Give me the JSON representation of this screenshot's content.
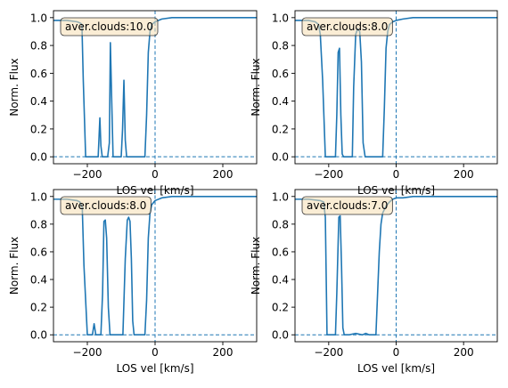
{
  "chart_data": [
    {
      "type": "line",
      "annotation": "aver.clouds:10.0",
      "xlabel": "LOS vel [km/s]",
      "ylabel": "Norm. Flux",
      "xlim": [
        -300,
        300
      ],
      "ylim": [
        -0.05,
        1.05
      ],
      "xticks": [
        -200,
        0,
        200
      ],
      "yticks": [
        0.0,
        0.2,
        0.4,
        0.6,
        0.8,
        1.0
      ],
      "xtick_labels": [
        "−200",
        "0",
        "200"
      ],
      "ytick_labels": [
        "0.0",
        "0.2",
        "0.4",
        "0.6",
        "0.8",
        "1.0"
      ],
      "reference_lines": {
        "x": 0,
        "y": 0
      },
      "series": [
        {
          "x": [
            -300,
            -260,
            -230,
            -220,
            -216,
            -212,
            -205,
            -195,
            -180,
            -172,
            -168,
            -163,
            -160,
            -156,
            -150,
            -145,
            -140,
            -135,
            -132,
            -128,
            -124,
            -120,
            -115,
            -110,
            -105,
            -100,
            -96,
            -92,
            -88,
            -84,
            -80,
            -70,
            -60,
            -50,
            -40,
            -30,
            -25,
            -20,
            -15,
            -10,
            0,
            20,
            50,
            100,
            200,
            300
          ],
          "y": [
            0.98,
            0.98,
            0.97,
            0.96,
            0.95,
            0.55,
            0.0,
            0.0,
            0.0,
            0.0,
            0.0,
            0.28,
            0.08,
            0.0,
            0.0,
            0.0,
            0.0,
            0.1,
            0.82,
            0.4,
            0.0,
            0.0,
            0.0,
            0.0,
            0.0,
            0.0,
            0.2,
            0.55,
            0.12,
            0.0,
            0.0,
            0.0,
            0.0,
            0.0,
            0.0,
            0.0,
            0.3,
            0.75,
            0.9,
            0.95,
            0.97,
            0.99,
            1.0,
            1.0,
            1.0,
            1.0
          ]
        }
      ]
    },
    {
      "type": "line",
      "annotation": "aver.clouds:8.0",
      "xlabel": "LOS vel [km/s]",
      "ylabel": "Norm. Flux",
      "xlim": [
        -300,
        300
      ],
      "ylim": [
        -0.05,
        1.05
      ],
      "xticks": [
        -200,
        0,
        200
      ],
      "yticks": [
        0.0,
        0.2,
        0.4,
        0.6,
        0.8,
        1.0
      ],
      "xtick_labels": [
        "−200",
        "0",
        "200"
      ],
      "ytick_labels": [
        "0.0",
        "0.2",
        "0.4",
        "0.6",
        "0.8",
        "1.0"
      ],
      "reference_lines": {
        "x": 0,
        "y": 0
      },
      "series": [
        {
          "x": [
            -300,
            -260,
            -240,
            -230,
            -225,
            -218,
            -210,
            -200,
            -190,
            -180,
            -176,
            -172,
            -168,
            -164,
            -160,
            -156,
            -150,
            -140,
            -130,
            -126,
            -120,
            -114,
            -108,
            -103,
            -98,
            -92,
            -80,
            -60,
            -40,
            -35,
            -30,
            -25,
            -20,
            -10,
            0,
            20,
            50,
            100,
            200,
            300
          ],
          "y": [
            0.98,
            0.98,
            0.97,
            0.95,
            0.88,
            0.55,
            0.0,
            0.0,
            0.0,
            0.0,
            0.3,
            0.75,
            0.78,
            0.3,
            0.02,
            0.0,
            0.0,
            0.0,
            0.0,
            0.5,
            0.88,
            0.92,
            0.9,
            0.68,
            0.1,
            0.0,
            0.0,
            0.0,
            0.0,
            0.35,
            0.78,
            0.9,
            0.95,
            0.97,
            0.98,
            0.99,
            1.0,
            1.0,
            1.0,
            1.0
          ]
        }
      ]
    },
    {
      "type": "line",
      "annotation": "aver.clouds:8.0",
      "xlabel": "LOS vel [km/s]",
      "ylabel": "Norm. Flux",
      "xlim": [
        -300,
        300
      ],
      "ylim": [
        -0.05,
        1.05
      ],
      "xticks": [
        -200,
        0,
        200
      ],
      "yticks": [
        0.0,
        0.2,
        0.4,
        0.6,
        0.8,
        1.0
      ],
      "xtick_labels": [
        "−200",
        "0",
        "200"
      ],
      "ytick_labels": [
        "0.0",
        "0.2",
        "0.4",
        "0.6",
        "0.8",
        "1.0"
      ],
      "reference_lines": {
        "x": 0,
        "y": 0
      },
      "series": [
        {
          "x": [
            -300,
            -260,
            -230,
            -222,
            -215,
            -210,
            -200,
            -190,
            -185,
            -180,
            -175,
            -170,
            -165,
            -160,
            -155,
            -151,
            -147,
            -143,
            -138,
            -133,
            -125,
            -115,
            -105,
            -95,
            -88,
            -82,
            -78,
            -74,
            -70,
            -66,
            -62,
            -58,
            -50,
            -40,
            -30,
            -25,
            -20,
            -15,
            -10,
            0,
            20,
            50,
            100,
            200,
            300
          ],
          "y": [
            0.98,
            0.98,
            0.97,
            0.96,
            0.92,
            0.5,
            0.0,
            0.0,
            0.0,
            0.08,
            0.0,
            0.0,
            0.0,
            0.0,
            0.3,
            0.82,
            0.83,
            0.7,
            0.2,
            0.0,
            0.0,
            0.0,
            0.0,
            0.0,
            0.55,
            0.83,
            0.85,
            0.82,
            0.55,
            0.1,
            0.0,
            0.0,
            0.0,
            0.0,
            0.0,
            0.25,
            0.7,
            0.88,
            0.94,
            0.97,
            0.99,
            1.0,
            1.0,
            1.0,
            1.0
          ]
        }
      ]
    },
    {
      "type": "line",
      "annotation": "aver.clouds:7.0",
      "xlabel": "LOS vel [km/s]",
      "ylabel": "Norm. Flux",
      "xlim": [
        -300,
        300
      ],
      "ylim": [
        -0.05,
        1.05
      ],
      "xticks": [
        -200,
        0,
        200
      ],
      "yticks": [
        0.0,
        0.2,
        0.4,
        0.6,
        0.8,
        1.0
      ],
      "xtick_labels": [
        "−200",
        "0",
        "200"
      ],
      "ytick_labels": [
        "0.0",
        "0.2",
        "0.4",
        "0.6",
        "0.8",
        "1.0"
      ],
      "reference_lines": {
        "x": 0,
        "y": 0
      },
      "series": [
        {
          "x": [
            -300,
            -260,
            -225,
            -215,
            -210,
            -205,
            -195,
            -185,
            -180,
            -176,
            -170,
            -166,
            -162,
            -158,
            -154,
            -150,
            -140,
            -120,
            -100,
            -90,
            -80,
            -70,
            -60,
            -55,
            -50,
            -45,
            -40,
            -30,
            -20,
            -10,
            0,
            20,
            50,
            100,
            200,
            300
          ],
          "y": [
            0.98,
            0.98,
            0.97,
            0.96,
            0.85,
            0.0,
            0.0,
            0.0,
            0.0,
            0.3,
            0.85,
            0.86,
            0.5,
            0.05,
            0.0,
            0.0,
            0.0,
            0.01,
            0.0,
            0.01,
            0.0,
            0.0,
            0.0,
            0.3,
            0.6,
            0.8,
            0.88,
            0.93,
            0.96,
            0.98,
            0.99,
            0.99,
            1.0,
            1.0,
            1.0,
            1.0
          ]
        }
      ]
    }
  ]
}
